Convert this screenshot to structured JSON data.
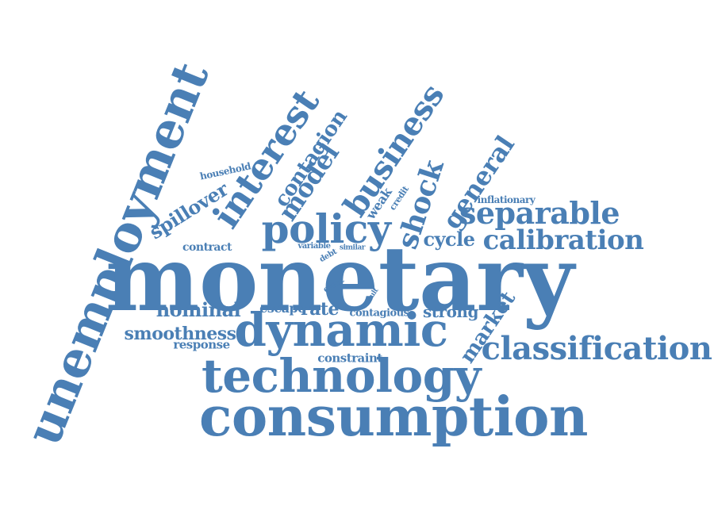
{
  "color": "#4a7fb5",
  "words": [
    {
      "id": "unemployment",
      "text": "unemployment"
    },
    {
      "id": "monetary",
      "text": "monetary"
    },
    {
      "id": "consumption",
      "text": "consumption"
    },
    {
      "id": "technology",
      "text": "technology"
    },
    {
      "id": "dynamic",
      "text": "dynamic"
    },
    {
      "id": "interest",
      "text": "interest"
    },
    {
      "id": "business",
      "text": "business"
    },
    {
      "id": "policy",
      "text": "policy"
    },
    {
      "id": "classification",
      "text": "classification"
    },
    {
      "id": "separable",
      "text": "separable"
    },
    {
      "id": "calibration",
      "text": "calibration"
    },
    {
      "id": "general",
      "text": "general"
    },
    {
      "id": "shock",
      "text": "shock"
    },
    {
      "id": "model",
      "text": "model"
    },
    {
      "id": "contagion",
      "text": "contagion"
    },
    {
      "id": "spillover",
      "text": "spillover"
    },
    {
      "id": "market",
      "text": "market"
    },
    {
      "id": "cycle",
      "text": "cycle"
    },
    {
      "id": "nominal",
      "text": "nominal"
    },
    {
      "id": "smoothness",
      "text": "smoothness"
    },
    {
      "id": "response",
      "text": "response"
    },
    {
      "id": "escape",
      "text": "escape"
    },
    {
      "id": "rate",
      "text": "rate"
    },
    {
      "id": "strong",
      "text": "strong"
    },
    {
      "id": "contagious",
      "text": "contagious"
    },
    {
      "id": "constraint",
      "text": "constraint"
    },
    {
      "id": "contract",
      "text": "contract"
    },
    {
      "id": "household",
      "text": "household"
    },
    {
      "id": "inflationary",
      "text": "inflationary"
    },
    {
      "id": "weak",
      "text": "weak"
    },
    {
      "id": "credit",
      "text": "credit"
    },
    {
      "id": "variable",
      "text": "variable"
    },
    {
      "id": "debt",
      "text": "debt"
    },
    {
      "id": "similar",
      "text": "similar"
    },
    {
      "id": "event",
      "text": "event"
    },
    {
      "id": "result",
      "text": "result"
    }
  ]
}
